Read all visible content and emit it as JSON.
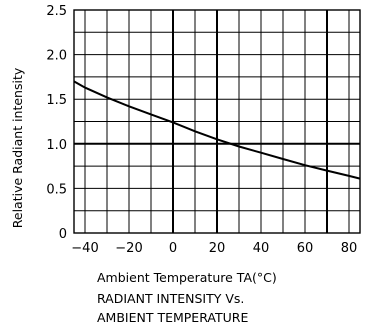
{
  "chart_data": {
    "type": "line",
    "xlabel": "Ambient Temperature TA(°C)",
    "ylabel": "Relative Radiant intensity",
    "caption_lines": [
      "RADIANT INTENSITY Vs.",
      "AMBIENT TEMPERATURE"
    ],
    "xlim": [
      -45,
      85
    ],
    "ylim": [
      0,
      2.5
    ],
    "x_ticks": [
      -40,
      -20,
      0,
      20,
      40,
      60,
      80
    ],
    "x_tick_labels": [
      "−40",
      "−20",
      "0",
      "20",
      "40",
      "60",
      "80"
    ],
    "y_ticks": [
      0,
      0.5,
      1.0,
      1.5,
      2.0,
      2.5
    ],
    "y_tick_labels": [
      "0",
      "0.5",
      "1.0",
      "1.5",
      "2.0",
      "2.5"
    ],
    "grid": true,
    "series": [
      {
        "x": [
          -45,
          -40,
          -30,
          -20,
          -10,
          0,
          10,
          20,
          30,
          40,
          50,
          60,
          70,
          80,
          85
        ],
        "y": [
          1.7,
          1.63,
          1.52,
          1.42,
          1.33,
          1.24,
          1.14,
          1.05,
          0.97,
          0.9,
          0.83,
          0.76,
          0.7,
          0.64,
          0.61
        ]
      }
    ],
    "colors": {
      "line": "#000000",
      "grid": "#000000",
      "background": "#ffffff"
    }
  }
}
